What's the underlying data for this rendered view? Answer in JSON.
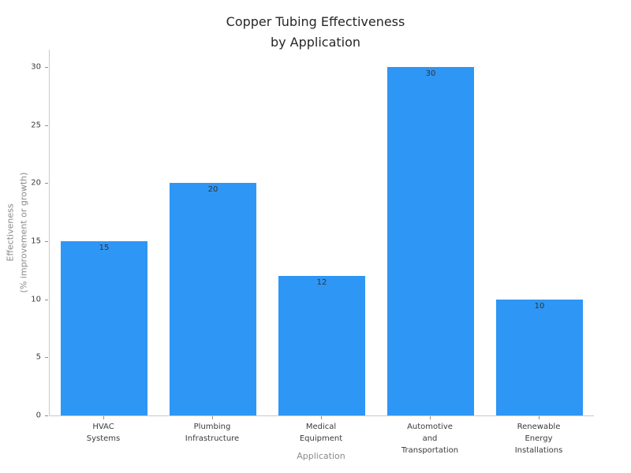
{
  "chart_data": {
    "type": "bar",
    "title": "Copper Tubing Effectiveness\nby Application",
    "xlabel": "Application",
    "ylabel": "Effectiveness\n(% improvement or growth)",
    "categories": [
      "HVAC\nSystems",
      "Plumbing\nInfrastructure",
      "Medical\nEquipment",
      "Automotive\nand\nTransportation",
      "Renewable\nEnergy\nInstallations"
    ],
    "values": [
      15,
      20,
      12,
      30,
      10
    ],
    "bar_labels": [
      "15",
      "20",
      "12",
      "30",
      "10"
    ],
    "yticks": [
      0,
      5,
      10,
      15,
      20,
      25,
      30
    ],
    "ylim": [
      0,
      31.5
    ],
    "grid": false,
    "legend": "none",
    "bar_width_fraction": 0.8,
    "colors": {
      "bar": "#2E96F4",
      "spine": "#cacaca",
      "tick_mark": "#8f8f8f",
      "title_text": "#262626",
      "tick_text": "#3a3a3a",
      "axis_label_text": "#8a8a8a",
      "bar_label_text": "#333333",
      "background": "#ffffff"
    }
  }
}
